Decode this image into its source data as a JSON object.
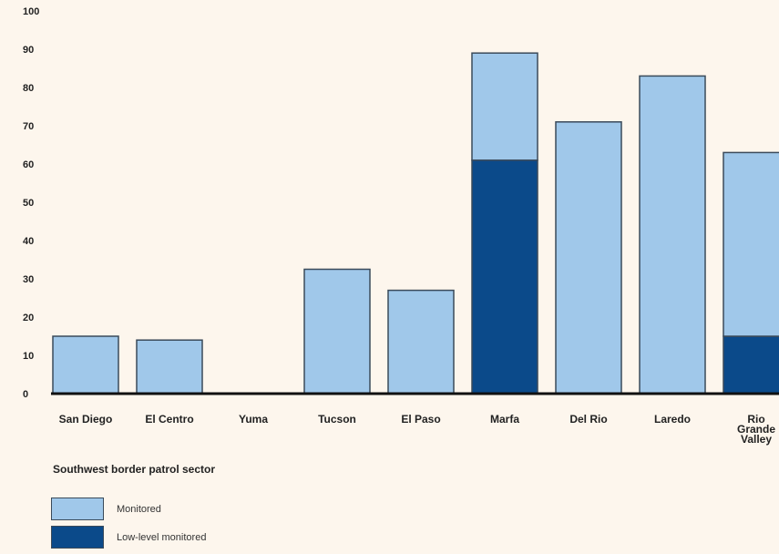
{
  "chart_data": {
    "type": "bar",
    "stacked": true,
    "title": "",
    "xlabel": "Southwest border patrol sector",
    "ylabel": "",
    "ylim": [
      0,
      100
    ],
    "yticks": [
      0,
      10,
      20,
      30,
      40,
      50,
      60,
      70,
      80,
      90,
      100
    ],
    "categories": [
      "San Diego",
      "El Centro",
      "Yuma",
      "Tucson",
      "El Paso",
      "Marfa",
      "Del Rio",
      "Laredo",
      "Rio\nGrande\nValley"
    ],
    "series": [
      {
        "name": "Low-level monitored",
        "color": "#0b4a8a",
        "values": [
          0,
          0,
          0,
          0,
          0,
          61,
          0,
          0,
          15
        ]
      },
      {
        "name": "Monitored",
        "color": "#a0c8ea",
        "values": [
          15,
          14,
          0,
          32.5,
          27,
          28,
          71,
          83,
          48
        ]
      }
    ],
    "legend": [
      {
        "label": "Monitored",
        "color": "#a0c8ea"
      },
      {
        "label": "Low-level monitored",
        "color": "#0b4a8a"
      }
    ],
    "legend_position": "bottom-left",
    "grid": false
  }
}
